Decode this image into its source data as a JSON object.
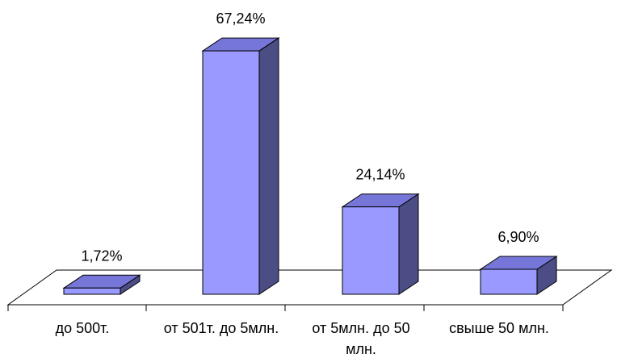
{
  "chart_data": {
    "type": "bar3d",
    "categories": [
      "до 500т.",
      "от 501т. до 5млн.",
      "от 5млн. до 50 млн.",
      "свыше 50 млн."
    ],
    "values": [
      1.72,
      67.24,
      24.14,
      6.9
    ],
    "value_labels": [
      "1,72%",
      "67,24%",
      "24,14%",
      "6,90%"
    ],
    "color": "#9999ff"
  }
}
